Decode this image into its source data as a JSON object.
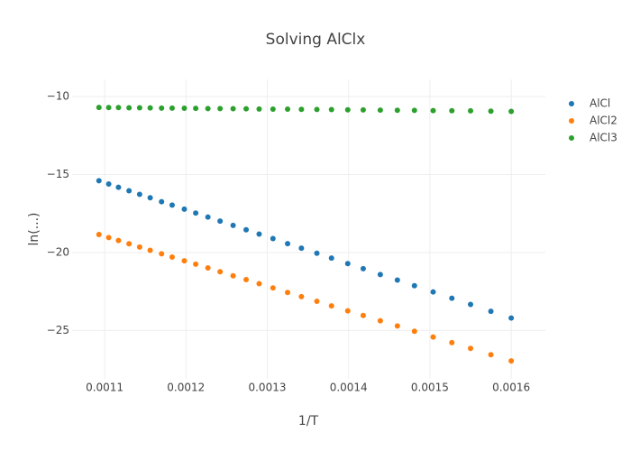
{
  "chart_data": {
    "type": "scatter",
    "title": "Solving AlClx",
    "x_label": "1/T",
    "y_label": "ln(...)",
    "x": [
      0.001093,
      0.001105,
      0.001117,
      0.00113,
      0.001143,
      0.001156,
      0.00117,
      0.001183,
      0.001198,
      0.001212,
      0.001227,
      0.001242,
      0.001258,
      0.001274,
      0.00129,
      0.001307,
      0.001325,
      0.001342,
      0.001361,
      0.001379,
      0.001399,
      0.001418,
      0.001439,
      0.00146,
      0.001481,
      0.001504,
      0.001527,
      0.00155,
      0.001575,
      0.0016
    ],
    "series": [
      {
        "name": "AlCl",
        "color": "#1f77b4",
        "values": [
          -15.4,
          -15.61,
          -15.82,
          -16.04,
          -16.27,
          -16.49,
          -16.74,
          -16.96,
          -17.22,
          -17.47,
          -17.73,
          -17.99,
          -18.26,
          -18.54,
          -18.82,
          -19.11,
          -19.43,
          -19.72,
          -20.05,
          -20.36,
          -20.71,
          -21.04,
          -21.41,
          -21.77,
          -22.13,
          -22.53,
          -22.93,
          -23.33,
          -23.77,
          -24.2
        ]
      },
      {
        "name": "AlCl2",
        "color": "#ff7f0e",
        "values": [
          -18.85,
          -19.04,
          -19.23,
          -19.44,
          -19.65,
          -19.86,
          -20.08,
          -20.29,
          -20.53,
          -20.75,
          -20.99,
          -21.23,
          -21.49,
          -21.74,
          -22.0,
          -22.27,
          -22.56,
          -22.83,
          -23.13,
          -23.42,
          -23.74,
          -24.04,
          -24.38,
          -24.71,
          -25.05,
          -25.42,
          -25.78,
          -26.15,
          -26.55,
          -26.95
        ]
      },
      {
        "name": "AlCl3",
        "color": "#2ca02c",
        "values": [
          -10.7,
          -10.71,
          -10.71,
          -10.72,
          -10.72,
          -10.73,
          -10.74,
          -10.74,
          -10.75,
          -10.76,
          -10.77,
          -10.77,
          -10.78,
          -10.79,
          -10.8,
          -10.81,
          -10.81,
          -10.82,
          -10.83,
          -10.84,
          -10.85,
          -10.86,
          -10.87,
          -10.88,
          -10.89,
          -10.9,
          -10.91,
          -10.92,
          -10.94,
          -10.95
        ]
      }
    ],
    "xlim": [
      0.00106,
      0.001642
    ],
    "ylim": [
      -28.1,
      -8.9
    ],
    "xticks": [
      0.0011,
      0.0012,
      0.0013,
      0.0014,
      0.0015,
      0.0016
    ],
    "yticks": [
      {
        "value": -10,
        "label": "−10"
      },
      {
        "value": -15,
        "label": "−15"
      },
      {
        "value": -20,
        "label": "−20"
      },
      {
        "value": -25,
        "label": "−25"
      }
    ],
    "grid": true,
    "legend": "top-right"
  }
}
